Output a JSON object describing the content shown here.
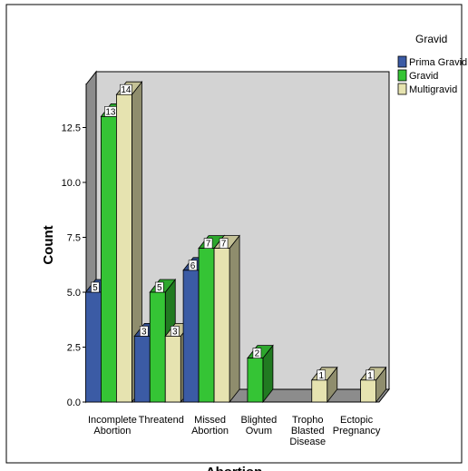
{
  "chart_data": {
    "type": "bar",
    "title": "",
    "xlabel": "Abortion",
    "ylabel": "Count",
    "ylim": [
      0,
      15
    ],
    "yticks": [
      "0.0",
      "2.5",
      "5.0",
      "7.5",
      "10.0",
      "12.5"
    ],
    "categories": [
      [
        "Incomplete",
        "Abortion"
      ],
      [
        "Threatend"
      ],
      [
        "Missed",
        "Abortion"
      ],
      [
        "Blighted",
        "Ovum"
      ],
      [
        "Tropho",
        "Blasted",
        "Disease"
      ],
      [
        "Ectopic",
        "Pregnancy"
      ]
    ],
    "legend": {
      "title": "Gravid",
      "position": "top-right"
    },
    "series": [
      {
        "name": "Prima Gravid",
        "color": "#3b5ba5",
        "values": [
          5,
          3,
          6,
          null,
          null,
          null
        ],
        "labels": [
          "5",
          "3",
          "6",
          "",
          "",
          ""
        ]
      },
      {
        "name": "Gravid",
        "color": "#35c435",
        "values": [
          13,
          5,
          7,
          2,
          null,
          null
        ],
        "labels": [
          "13",
          "5",
          "7",
          "2",
          "",
          ""
        ]
      },
      {
        "name": "Multigravid",
        "color": "#e6e3b0",
        "values": [
          14,
          3,
          7,
          null,
          1,
          1
        ],
        "labels": [
          "14",
          "3",
          "7",
          "",
          "1",
          "1"
        ]
      }
    ],
    "grid": false,
    "background": "#d3d3d3"
  }
}
